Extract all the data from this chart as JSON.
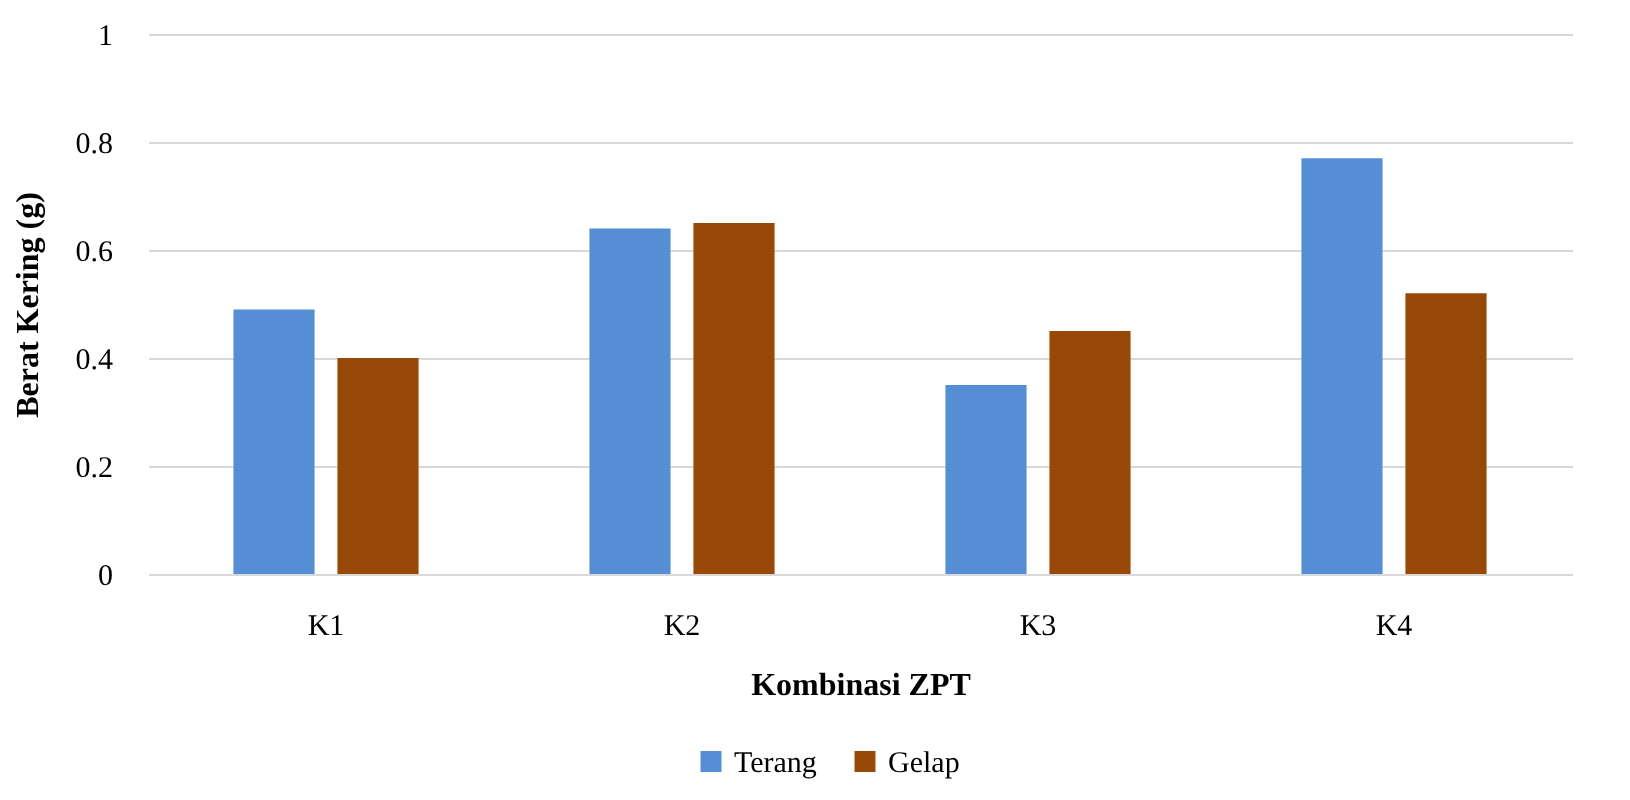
{
  "chart_data": {
    "type": "bar",
    "categories": [
      "K1",
      "K2",
      "K3",
      "K4"
    ],
    "series": [
      {
        "name": "Terang",
        "color": "#558ed5",
        "values": [
          0.49,
          0.64,
          0.35,
          0.77
        ]
      },
      {
        "name": "Gelap",
        "color": "#984807",
        "values": [
          0.4,
          0.65,
          0.45,
          0.52
        ]
      }
    ],
    "xlabel": "Kombinasi ZPT",
    "ylabel": "Berat Kering (g)",
    "ylim": [
      0,
      1
    ],
    "yticks": [
      0,
      0.2,
      0.4,
      0.6,
      0.8,
      1
    ],
    "grid": "y",
    "legend": "bottom"
  }
}
